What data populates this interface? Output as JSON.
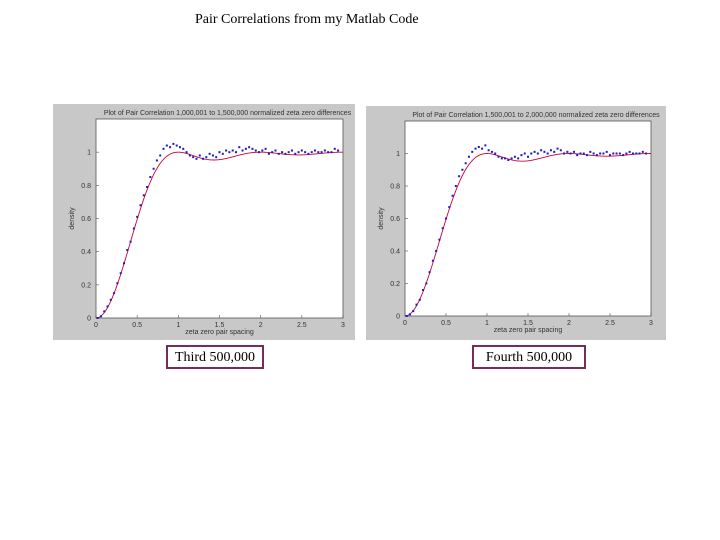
{
  "slide": {
    "title": "Pair Correlations from my Matlab Code"
  },
  "captions": {
    "left": "Third 500,000",
    "right": "Fourth 500,000"
  },
  "colors": {
    "panel_bg": "#c8c8c8",
    "plot_bg": "#ffffff",
    "curve": "#cc0033",
    "points": "#1a1acc",
    "caption_border": "#7a2a5a"
  },
  "chart_data": [
    {
      "type": "scatter",
      "title": "Plot of Pair Correlation 1,000,001 to 1,500,000 normalized zeta zero differences",
      "xlabel": "zeta zero pair spacing",
      "ylabel": "density",
      "xlim": [
        0,
        3
      ],
      "ylim": [
        0,
        1.2
      ],
      "xticks": [
        "0",
        "0.5",
        "1",
        "1.5",
        "2",
        "2.5",
        "3"
      ],
      "yticks": [
        "0",
        "0.2",
        "0.4",
        "0.6",
        "0.8",
        "1"
      ],
      "curve_label": "1 - (sin(pi x)/(pi x))^2",
      "x": [
        0.02,
        0.06,
        0.1,
        0.14,
        0.18,
        0.22,
        0.26,
        0.3,
        0.34,
        0.38,
        0.42,
        0.46,
        0.5,
        0.54,
        0.58,
        0.62,
        0.66,
        0.7,
        0.74,
        0.78,
        0.82,
        0.86,
        0.9,
        0.94,
        0.98,
        1.02,
        1.06,
        1.1,
        1.14,
        1.18,
        1.22,
        1.26,
        1.3,
        1.34,
        1.38,
        1.42,
        1.46,
        1.5,
        1.54,
        1.58,
        1.62,
        1.66,
        1.7,
        1.74,
        1.78,
        1.82,
        1.86,
        1.9,
        1.94,
        1.98,
        2.02,
        2.06,
        2.1,
        2.14,
        2.18,
        2.22,
        2.26,
        2.3,
        2.34,
        2.38,
        2.42,
        2.46,
        2.5,
        2.54,
        2.58,
        2.62,
        2.66,
        2.7,
        2.74,
        2.78,
        2.82,
        2.86,
        2.9,
        2.94
      ],
      "y": [
        0.0,
        0.01,
        0.04,
        0.07,
        0.11,
        0.15,
        0.21,
        0.27,
        0.33,
        0.41,
        0.46,
        0.54,
        0.61,
        0.68,
        0.74,
        0.79,
        0.85,
        0.9,
        0.95,
        0.98,
        1.02,
        1.04,
        1.03,
        1.05,
        1.04,
        1.03,
        1.02,
        1.0,
        0.98,
        0.97,
        0.96,
        0.98,
        0.96,
        0.97,
        0.99,
        0.98,
        0.97,
        1.0,
        0.99,
        1.01,
        1.0,
        1.01,
        1.0,
        1.03,
        1.01,
        1.02,
        1.03,
        1.02,
        1.01,
        1.0,
        1.01,
        1.02,
        0.99,
        1.0,
        1.01,
        0.99,
        1.0,
        0.99,
        1.0,
        1.01,
        0.99,
        1.0,
        1.01,
        1.0,
        0.99,
        1.0,
        1.01,
        1.0,
        1.0,
        1.01,
        1.0,
        1.0,
        1.02,
        1.01
      ]
    },
    {
      "type": "scatter",
      "title": "Plot of Pair Correlation 1,500,001 to 2,000,000 normalized zeta zero differences",
      "xlabel": "zeta zero pair spacing",
      "ylabel": "density",
      "xlim": [
        0,
        3
      ],
      "ylim": [
        0,
        1.2
      ],
      "xticks": [
        "0",
        "0.5",
        "1",
        "1.5",
        "2",
        "2.5",
        "3"
      ],
      "yticks": [
        "0",
        "0.2",
        "0.4",
        "0.6",
        "0.8",
        "1"
      ],
      "curve_label": "1 - (sin(pi x)/(pi x))^2",
      "x": [
        0.02,
        0.06,
        0.1,
        0.14,
        0.18,
        0.22,
        0.26,
        0.3,
        0.34,
        0.38,
        0.42,
        0.46,
        0.5,
        0.54,
        0.58,
        0.62,
        0.66,
        0.7,
        0.74,
        0.78,
        0.82,
        0.86,
        0.9,
        0.94,
        0.98,
        1.02,
        1.06,
        1.1,
        1.14,
        1.18,
        1.22,
        1.26,
        1.3,
        1.34,
        1.38,
        1.42,
        1.46,
        1.5,
        1.54,
        1.58,
        1.62,
        1.66,
        1.7,
        1.74,
        1.78,
        1.82,
        1.86,
        1.9,
        1.94,
        1.98,
        2.02,
        2.06,
        2.1,
        2.14,
        2.18,
        2.22,
        2.26,
        2.3,
        2.34,
        2.38,
        2.42,
        2.46,
        2.5,
        2.54,
        2.58,
        2.62,
        2.66,
        2.7,
        2.74,
        2.78,
        2.82,
        2.86,
        2.9,
        2.94
      ],
      "y": [
        0.0,
        0.01,
        0.03,
        0.07,
        0.1,
        0.16,
        0.2,
        0.27,
        0.34,
        0.4,
        0.47,
        0.54,
        0.6,
        0.67,
        0.74,
        0.8,
        0.86,
        0.9,
        0.94,
        0.98,
        1.01,
        1.03,
        1.04,
        1.03,
        1.05,
        1.02,
        1.01,
        1.0,
        0.98,
        0.97,
        0.97,
        0.96,
        0.97,
        0.98,
        0.97,
        0.99,
        1.0,
        0.98,
        1.0,
        1.01,
        1.0,
        1.02,
        1.01,
        1.0,
        1.02,
        1.01,
        1.03,
        1.02,
        1.0,
        1.01,
        1.0,
        1.01,
        0.99,
        1.0,
        1.0,
        0.99,
        1.01,
        1.0,
        0.99,
        1.0,
        1.0,
        1.01,
        0.99,
        1.0,
        1.0,
        1.0,
        0.99,
        1.0,
        1.01,
        1.0,
        1.0,
        1.0,
        1.01,
        1.0
      ]
    }
  ]
}
